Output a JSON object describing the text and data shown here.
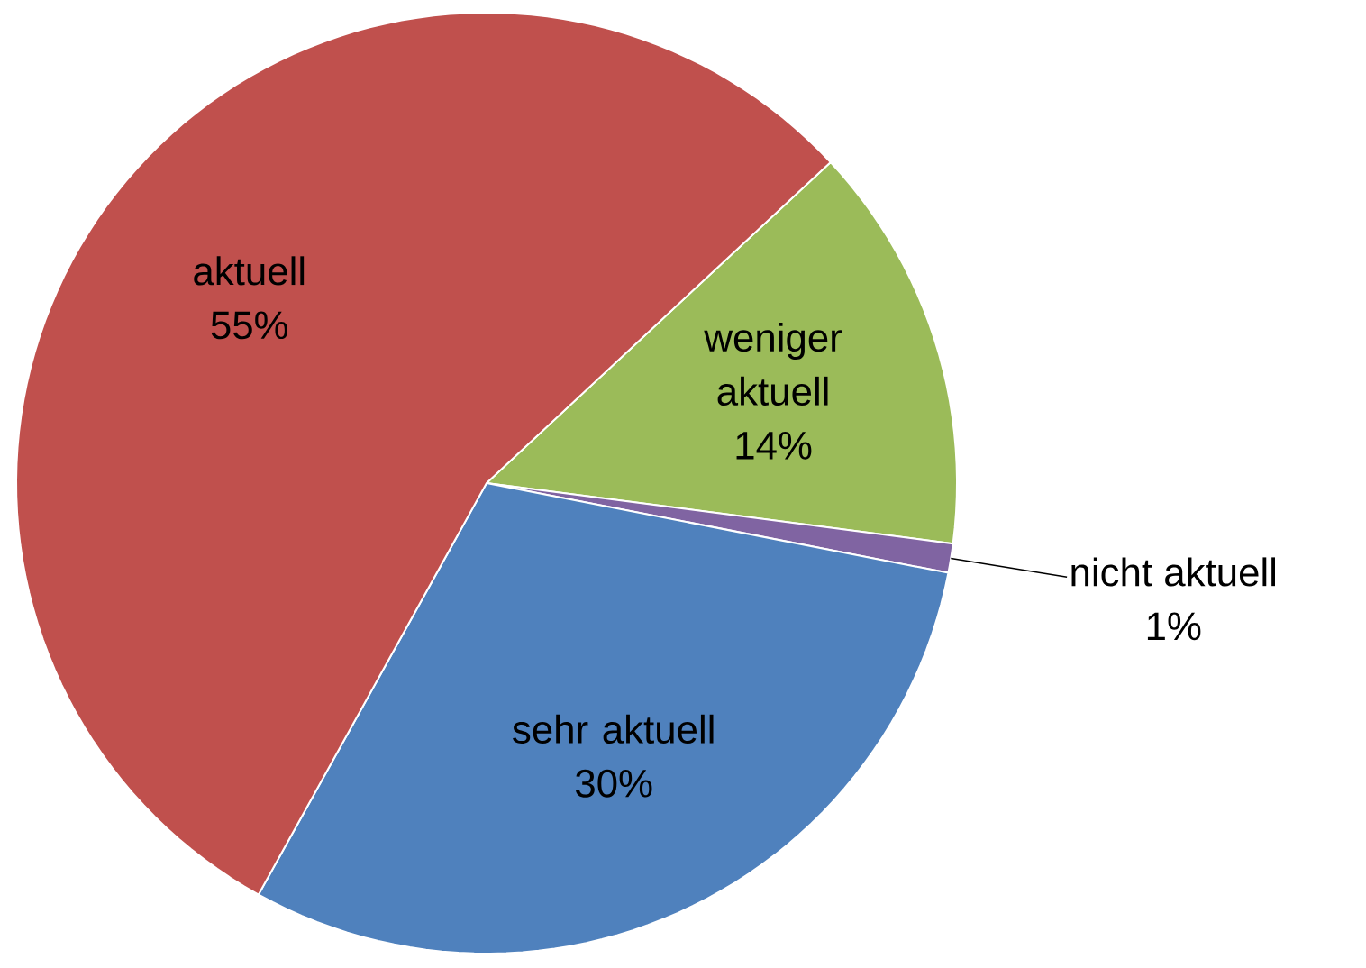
{
  "chart_data": {
    "type": "pie",
    "categories": [
      "weniger aktuell",
      "nicht aktuell",
      "sehr aktuell",
      "aktuell"
    ],
    "values": [
      14,
      1,
      30,
      55
    ],
    "value_labels": [
      "14%",
      "1%",
      "30%",
      "55%"
    ],
    "colors": [
      "#9bbb59",
      "#8064a2",
      "#4f81bd",
      "#c0504d"
    ]
  }
}
